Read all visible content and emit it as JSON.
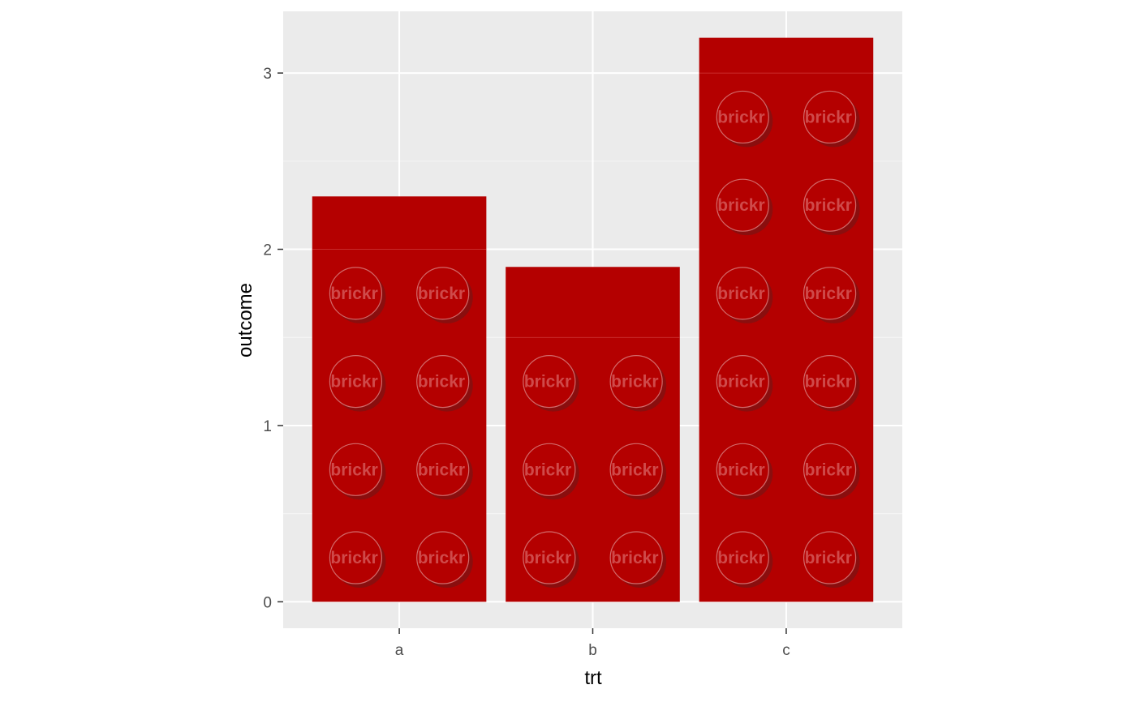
{
  "chart_data": {
    "type": "bar",
    "style": "lego-bricks",
    "categories": [
      "a",
      "b",
      "c"
    ],
    "values": [
      2.3,
      1.9,
      3.2
    ],
    "xlabel": "trt",
    "ylabel": "outcome",
    "ylim": [
      -0.15,
      3.35
    ],
    "yticks": [
      0,
      1,
      2,
      3
    ],
    "grid": true,
    "legend": "none",
    "brick_height": 0.5,
    "studs_per_row": 2,
    "stud_label": "brickr",
    "colors": {
      "bar": "#b40000",
      "stud_shadow": "#8a0e0e",
      "stud_text": "#cf4a4a",
      "stud_outline": "#d26a6a",
      "panel": "#ebebeb",
      "grid_major": "#ffffff",
      "grid_minor": "#f5f5f5",
      "tick": "#333333"
    }
  }
}
